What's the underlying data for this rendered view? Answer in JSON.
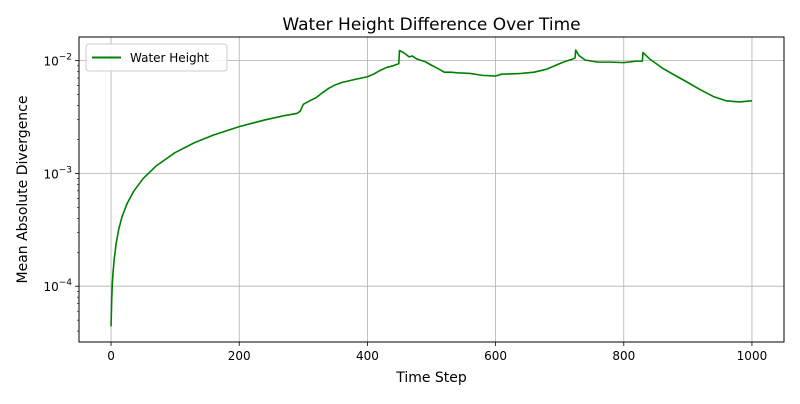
{
  "chart_data": {
    "type": "line",
    "title": "Water Height Difference Over Time",
    "xlabel": "Time Step",
    "ylabel": "Mean Absolute Divergence",
    "yscale": "log",
    "xlim": [
      -50,
      1050
    ],
    "ylim": [
      3.2e-05,
      0.0162
    ],
    "xticks": [
      0,
      200,
      400,
      600,
      800,
      1000
    ],
    "yticks": [
      {
        "value": 0.0001,
        "base": "10",
        "exp": "−4"
      },
      {
        "value": 0.001,
        "base": "10",
        "exp": "−3"
      },
      {
        "value": 0.01,
        "base": "10",
        "exp": "−2"
      }
    ],
    "grid": true,
    "legend_position": "upper-left",
    "series": [
      {
        "name": "Water Height",
        "color": "#008000",
        "x": [
          0,
          1,
          2,
          3,
          5,
          8,
          12,
          17,
          25,
          35,
          50,
          70,
          100,
          130,
          160,
          200,
          240,
          270,
          290,
          295,
          300,
          310,
          320,
          330,
          340,
          350,
          360,
          370,
          380,
          390,
          400,
          410,
          420,
          430,
          440,
          449,
          450,
          455,
          460,
          465,
          470,
          475,
          480,
          490,
          500,
          510,
          520,
          530,
          540,
          560,
          580,
          600,
          610,
          620,
          640,
          660,
          680,
          700,
          710,
          720,
          724,
          725,
          730,
          740,
          760,
          780,
          800,
          820,
          829,
          830,
          840,
          860,
          880,
          900,
          920,
          940,
          960,
          980,
          1000
        ],
        "y": [
          4.4e-05,
          7.5e-05,
          0.000105,
          0.00013,
          0.000175,
          0.00024,
          0.00032,
          0.00041,
          0.00054,
          0.00069,
          0.0009,
          0.00116,
          0.00153,
          0.00187,
          0.00219,
          0.0026,
          0.00298,
          0.00325,
          0.0034,
          0.00355,
          0.0041,
          0.0044,
          0.0047,
          0.0052,
          0.0057,
          0.0061,
          0.0064,
          0.0066,
          0.0068,
          0.007,
          0.0072,
          0.0076,
          0.0082,
          0.0087,
          0.009,
          0.0094,
          0.0123,
          0.0119,
          0.0114,
          0.0108,
          0.011,
          0.0105,
          0.0102,
          0.0098,
          0.0091,
          0.0085,
          0.0079,
          0.0079,
          0.0078,
          0.0077,
          0.0074,
          0.0073,
          0.0076,
          0.0076,
          0.0077,
          0.0079,
          0.0084,
          0.0094,
          0.0099,
          0.0103,
          0.0106,
          0.0124,
          0.0111,
          0.0101,
          0.0097,
          0.0097,
          0.0096,
          0.0099,
          0.0099,
          0.0118,
          0.0104,
          0.0086,
          0.0074,
          0.0064,
          0.0055,
          0.0048,
          0.0044,
          0.0043,
          0.0044
        ]
      }
    ]
  }
}
